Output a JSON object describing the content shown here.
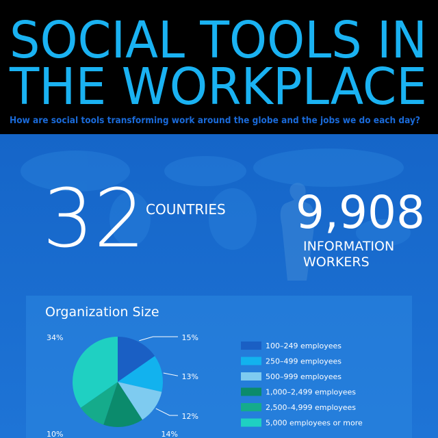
{
  "header": {
    "title_lines": [
      "SOCIAL TOOLS IN",
      "THE WORKPLACE"
    ],
    "subtitle": "How are social tools transforming work around the globe and the jobs we do each day?"
  },
  "stats": [
    {
      "value": "32",
      "label_lines": [
        "COUNTRIES"
      ]
    },
    {
      "value": "9,908",
      "label_lines": [
        "INFORMATION",
        "WORKERS"
      ]
    }
  ],
  "chart_data": {
    "type": "pie",
    "title": "Organization Size",
    "categories": [
      "100–249 employees",
      "250–499 employees",
      "500–999 employees",
      "1,000–2,499 employees",
      "2,500–4,999 employees",
      "5,000 employees or more"
    ],
    "values": [
      15,
      13,
      12,
      14,
      10,
      34
    ],
    "value_labels": [
      "15%",
      "13%",
      "12%",
      "14%",
      "10%",
      "34%"
    ],
    "colors": [
      "#1a5fc4",
      "#12b2ee",
      "#7ecbf0",
      "#0b8b6c",
      "#15ab8b",
      "#1fd0c2"
    ]
  }
}
